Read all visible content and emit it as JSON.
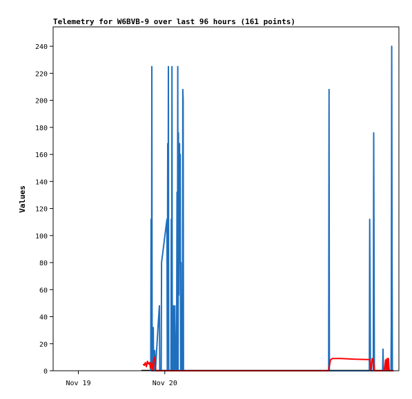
{
  "chart_data": {
    "type": "line",
    "title": "Telemetry for W6BVB-9 over last 96 hours (161 points)",
    "xlabel": "",
    "ylabel": "Values",
    "x_domain": [
      "Nov 18, 17:00",
      "Nov 22, 17:00"
    ],
    "x_ticks": [
      {
        "label": "Nov 19",
        "at": "Nov 19, 00:00"
      },
      {
        "label": "Nov 20",
        "at": "Nov 20, 00:00"
      }
    ],
    "ylim": [
      0,
      250
    ],
    "y_ticks": [
      0,
      20,
      40,
      60,
      80,
      100,
      120,
      140,
      160,
      180,
      200,
      220,
      240
    ],
    "grid": false,
    "legend": "none",
    "colors": {
      "blue": "#1f6fbf",
      "red": "#ff0000",
      "baseline": "#000000",
      "frame": "#000000"
    },
    "series": [
      {
        "color": "#1f6fbf",
        "points": [
          [
            27.1,
            0
          ],
          [
            27.2,
            112
          ],
          [
            27.3,
            0
          ],
          [
            27.4,
            225
          ],
          [
            27.5,
            0
          ],
          [
            27.6,
            15
          ],
          [
            27.7,
            0
          ],
          [
            27.8,
            32
          ],
          [
            27.9,
            0
          ],
          [
            28.0,
            10
          ],
          [
            28.1,
            0
          ],
          [
            28.2,
            15
          ],
          [
            28.4,
            0
          ],
          [
            29.3,
            40
          ],
          [
            29.5,
            48
          ],
          [
            29.6,
            0
          ],
          [
            30.0,
            0
          ],
          [
            30.1,
            80
          ],
          [
            31.6,
            112
          ],
          [
            31.7,
            0
          ],
          [
            31.8,
            168
          ],
          [
            31.9,
            56
          ],
          [
            32.0,
            225
          ],
          [
            32.1,
            0
          ],
          [
            32.7,
            0
          ],
          [
            32.8,
            112
          ],
          [
            32.9,
            0
          ],
          [
            33.0,
            225
          ],
          [
            33.1,
            0
          ],
          [
            33.2,
            24
          ],
          [
            33.3,
            0
          ],
          [
            33.4,
            48
          ],
          [
            33.5,
            0
          ],
          [
            33.6,
            24
          ],
          [
            33.7,
            0
          ],
          [
            33.8,
            48
          ],
          [
            33.9,
            0
          ],
          [
            34.0,
            24
          ],
          [
            34.1,
            0
          ],
          [
            34.3,
            40
          ],
          [
            34.4,
            132
          ],
          [
            34.5,
            0
          ],
          [
            34.6,
            225
          ],
          [
            34.7,
            0
          ],
          [
            34.8,
            176
          ],
          [
            34.9,
            56
          ],
          [
            35.0,
            120
          ],
          [
            35.1,
            168
          ],
          [
            35.2,
            80
          ],
          [
            35.3,
            160
          ],
          [
            35.4,
            0
          ],
          [
            35.5,
            80
          ],
          [
            35.6,
            0
          ],
          [
            35.9,
            0
          ],
          [
            36.0,
            208
          ],
          [
            36.1,
            200
          ],
          [
            36.2,
            0
          ],
          [
            76.5,
            0
          ],
          [
            76.6,
            208
          ],
          [
            76.7,
            0
          ],
          [
            87.8,
            0
          ],
          [
            87.9,
            112
          ],
          [
            88.0,
            56
          ],
          [
            88.1,
            0
          ],
          [
            88.9,
            0
          ],
          [
            89.0,
            176
          ],
          [
            89.1,
            88
          ],
          [
            89.2,
            0
          ],
          [
            91.5,
            0
          ],
          [
            91.6,
            16
          ],
          [
            91.7,
            0
          ],
          [
            93.8,
            0
          ],
          [
            93.9,
            32
          ],
          [
            94.0,
            240
          ],
          [
            94.1,
            88
          ],
          [
            94.2,
            0
          ],
          [
            94.5,
            0
          ]
        ]
      },
      {
        "color": "#ff0000",
        "points": [
          [
            25.0,
            5
          ],
          [
            25.3,
            4
          ],
          [
            25.6,
            6
          ],
          [
            25.9,
            3
          ],
          [
            26.2,
            7
          ],
          [
            26.5,
            5
          ],
          [
            26.8,
            6
          ],
          [
            27.0,
            2
          ],
          [
            27.3,
            6
          ],
          [
            27.6,
            0
          ],
          [
            27.9,
            8
          ],
          [
            28.2,
            10
          ],
          [
            28.5,
            0
          ],
          [
            29.0,
            0
          ],
          [
            76.5,
            0
          ],
          [
            77.0,
            8
          ],
          [
            77.5,
            9
          ],
          [
            80.0,
            9
          ],
          [
            84.0,
            8.5
          ],
          [
            87.5,
            8.3
          ],
          [
            87.9,
            8.2
          ],
          [
            88.3,
            0
          ],
          [
            88.6,
            9
          ],
          [
            88.9,
            8.5
          ],
          [
            89.2,
            0
          ],
          [
            92.0,
            0
          ],
          [
            92.3,
            8
          ],
          [
            92.5,
            0
          ],
          [
            92.7,
            9
          ],
          [
            92.9,
            0
          ],
          [
            93.1,
            9
          ],
          [
            93.3,
            0
          ],
          [
            94.5,
            0
          ]
        ]
      }
    ]
  }
}
